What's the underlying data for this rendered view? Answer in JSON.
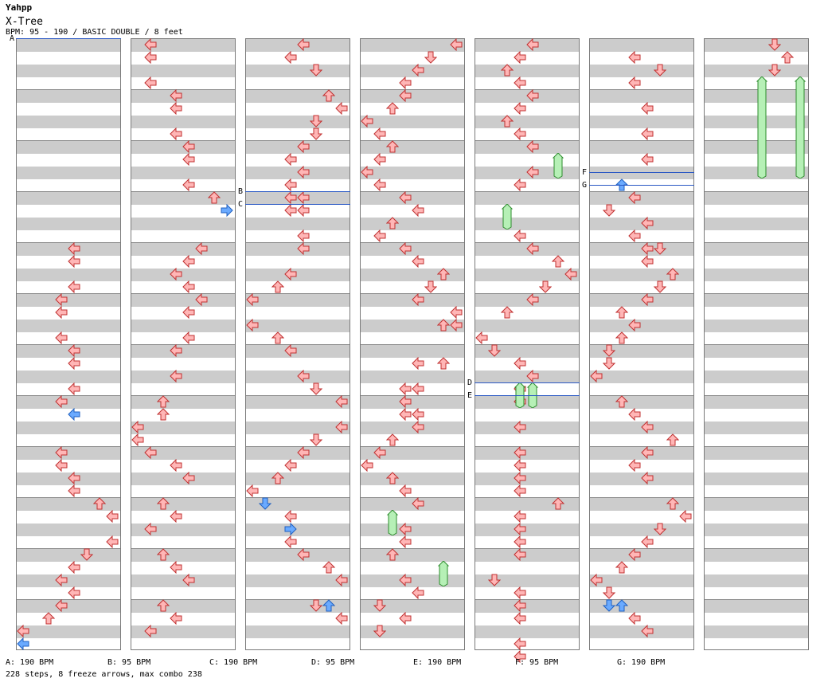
{
  "header": {
    "artist": "Yahpp",
    "title": "X-Tree",
    "info": "BPM: 95 - 190 / BASIC DOUBLE / 8 feet"
  },
  "colors": {
    "tap": "#ffb6b6",
    "tap_stroke": "#c03030",
    "shock": "#6aaaff",
    "shock_stroke": "#2060c0",
    "freeze": "#b6f0b6",
    "freeze_stroke": "#2c8c2c",
    "bpm_line": "#2a58c4"
  },
  "bpm_changes": [
    {
      "label": "A",
      "bpm": "190 BPM"
    },
    {
      "label": "B",
      "bpm": "95 BPM"
    },
    {
      "label": "C",
      "bpm": "190 BPM"
    },
    {
      "label": "D",
      "bpm": "95 BPM"
    },
    {
      "label": "E",
      "bpm": "190 BPM"
    },
    {
      "label": "F",
      "bpm": "95 BPM"
    },
    {
      "label": "G",
      "bpm": "190 BPM"
    }
  ],
  "legend": [
    "A: 190 BPM",
    "B: 95 BPM",
    "C: 190 BPM",
    "D: 95 BPM",
    "E: 190 BPM",
    "F: 95 BPM",
    "G: 190 BPM"
  ],
  "stats": "228 steps, 8 freeze arrows, max combo 238",
  "columns": [
    {
      "notes": [
        [
          20,
          4,
          "L"
        ],
        [
          20,
          5,
          "L"
        ],
        [
          22,
          4,
          "L"
        ],
        [
          24,
          3,
          "L"
        ],
        [
          24,
          4,
          "L"
        ],
        [
          26,
          2,
          "L"
        ],
        [
          28,
          1,
          "L"
        ],
        [
          30,
          0,
          "L"
        ],
        [
          32,
          5,
          "L"
        ],
        [
          33,
          5,
          "L"
        ],
        [
          34,
          6,
          "L"
        ],
        [
          34,
          7,
          "L"
        ],
        [
          36,
          5,
          "L"
        ],
        [
          38,
          4,
          "L"
        ],
        [
          40,
          3,
          "L"
        ],
        [
          42,
          2,
          "L"
        ],
        [
          44,
          2,
          "L"
        ],
        [
          45,
          1,
          "L"
        ],
        [
          37,
          0,
          "D"
        ],
        [
          46,
          2,
          "D"
        ],
        [
          47,
          1,
          "D"
        ],
        [
          48,
          1,
          "D"
        ],
        [
          30,
          4,
          "U"
        ],
        [
          40,
          4,
          "U"
        ],
        [
          43,
          4,
          "D"
        ],
        [
          20,
          4,
          "L"
        ],
        [
          21,
          4,
          "L"
        ],
        [
          23,
          3,
          "L"
        ],
        [
          28,
          4,
          "L"
        ],
        [
          29,
          4,
          "L"
        ],
        [
          33,
          4,
          "L"
        ],
        [
          36,
          4,
          "L"
        ],
        [
          37,
          4,
          "L"
        ],
        [
          38,
          3,
          "L"
        ],
        [
          40,
          3,
          "L"
        ],
        [
          42,
          4,
          "L"
        ],
        [
          44,
          4,
          "L"
        ],
        [
          46,
          4,
          "L"
        ],
        [
          48,
          0,
          "U"
        ],
        [
          47,
          1,
          "U"
        ],
        [
          49,
          0,
          "L"
        ],
        [
          50,
          0,
          "L"
        ],
        [
          29,
          4,
          "L"
        ],
        [
          31,
          4,
          "L"
        ],
        [
          33,
          4,
          "L"
        ],
        [
          35,
          3,
          "L"
        ],
        [
          37,
          3,
          "L"
        ],
        [
          39,
          4,
          "L"
        ],
        [
          41,
          4,
          "L"
        ],
        [
          43,
          4,
          "L"
        ],
        [
          45,
          3,
          "L"
        ],
        [
          47,
          3,
          "L"
        ],
        [
          22,
          4,
          "L"
        ],
        [
          23,
          4,
          "L"
        ],
        [
          25,
          4,
          "L"
        ],
        [
          26,
          3,
          "L"
        ],
        [
          27,
          3,
          "L"
        ],
        [
          29,
          4,
          "L"
        ],
        [
          32,
          4,
          "L"
        ],
        [
          35,
          3,
          "L"
        ],
        [
          36,
          3,
          "L"
        ],
        [
          37,
          4,
          "L"
        ],
        [
          38,
          4,
          "L"
        ],
        [
          39,
          4,
          "L"
        ],
        [
          41,
          4,
          "L"
        ],
        [
          43,
          4,
          "L"
        ],
        [
          44,
          3,
          "L"
        ],
        [
          46,
          3,
          "L"
        ],
        [
          47,
          4,
          "L"
        ]
      ]
    }
  ]
}
